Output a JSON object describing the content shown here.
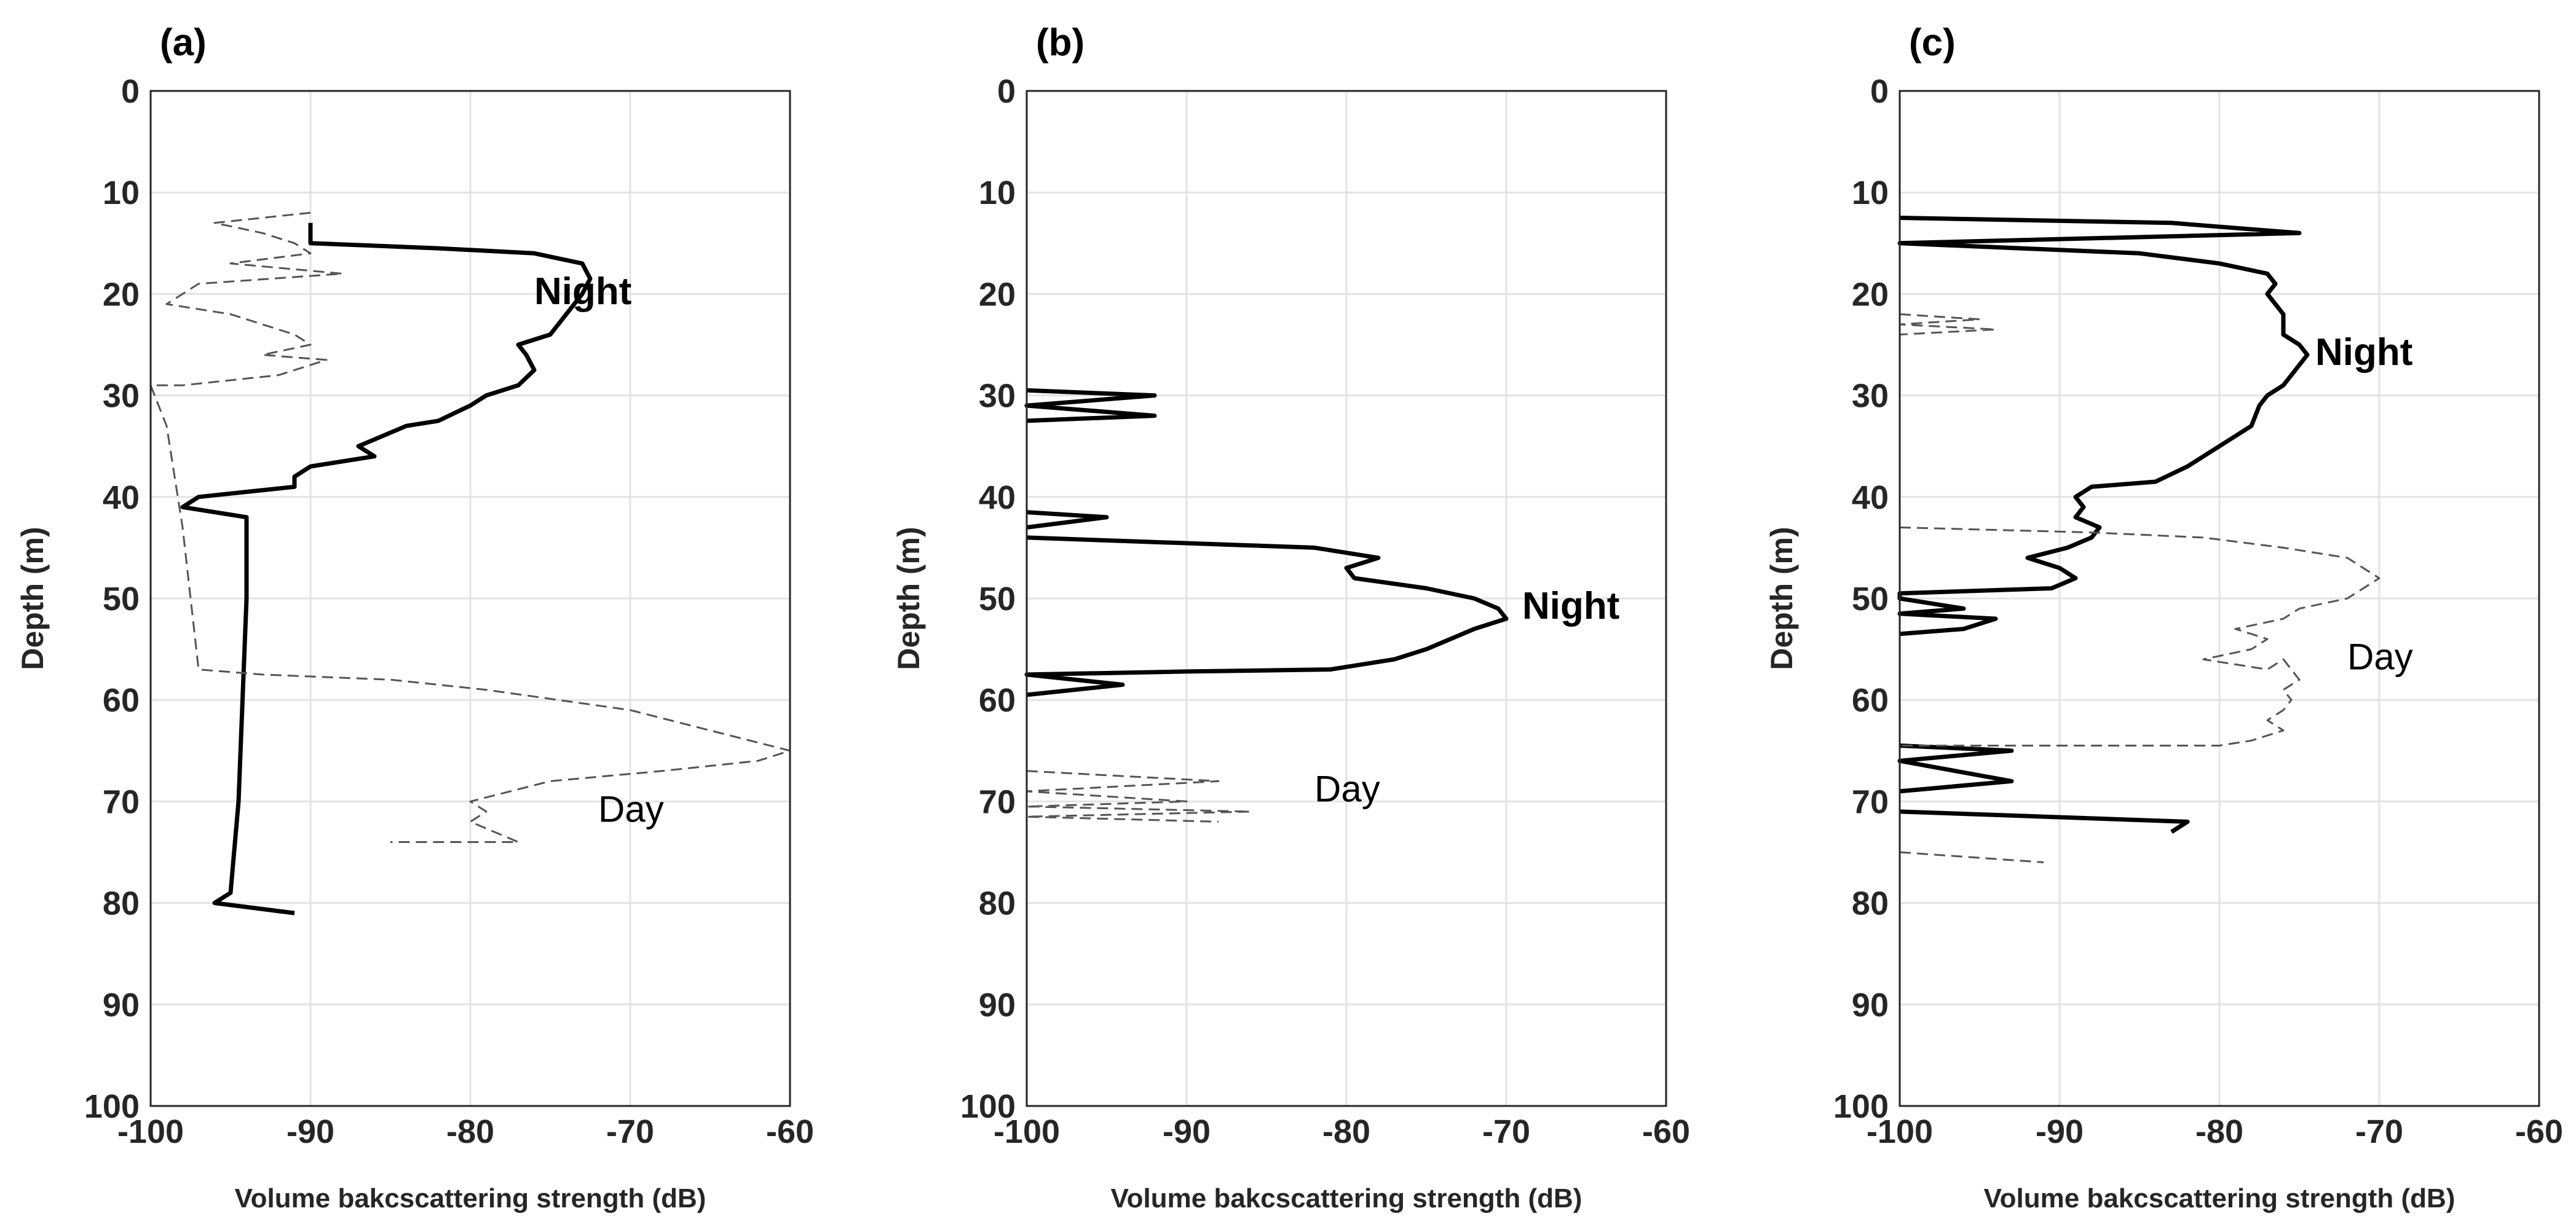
{
  "chart_data": [
    {
      "type": "line",
      "panel_label": "(a)",
      "xlabel": "Volume bakcscattering strength (dB)",
      "ylabel": "Depth (m)",
      "xlim": [
        -100,
        -60
      ],
      "ylim": [
        0,
        100
      ],
      "y_reversed": true,
      "grid": true,
      "x_ticks": [
        "-100",
        "-90",
        "-80",
        "-70",
        "-60"
      ],
      "y_ticks": [
        "0",
        "10",
        "20",
        "30",
        "40",
        "50",
        "60",
        "70",
        "80",
        "90",
        "100"
      ],
      "series": [
        {
          "name": "Night",
          "style": "solid-bold",
          "label_at": [
            -76,
            21
          ],
          "points": [
            [
              -90,
              13
            ],
            [
              -90,
              15
            ],
            [
              -82,
              15.5
            ],
            [
              -76,
              16
            ],
            [
              -73,
              17
            ],
            [
              -72.5,
              18.5
            ],
            [
              -73,
              20
            ],
            [
              -74,
              22
            ],
            [
              -75,
              24
            ],
            [
              -77,
              25
            ],
            [
              -76.5,
              26
            ],
            [
              -76,
              27.5
            ],
            [
              -77,
              29
            ],
            [
              -79,
              30
            ],
            [
              -80,
              31
            ],
            [
              -82,
              32.5
            ],
            [
              -84,
              33
            ],
            [
              -87,
              35
            ],
            [
              -86,
              36
            ],
            [
              -90,
              37
            ],
            [
              -91,
              38
            ],
            [
              -91,
              39
            ],
            [
              -94,
              39.5
            ],
            [
              -97,
              40
            ],
            [
              -98,
              41
            ],
            [
              -94,
              42
            ],
            [
              -94,
              50
            ],
            [
              -94.5,
              70
            ],
            [
              -95,
              79
            ],
            [
              -96,
              80
            ],
            [
              -91,
              81
            ]
          ]
        },
        {
          "name": "Day",
          "style": "dashed",
          "label_at": [
            -72,
            72
          ],
          "points": [
            [
              -90,
              12
            ],
            [
              -93,
              12.5
            ],
            [
              -96,
              13
            ],
            [
              -93,
              14
            ],
            [
              -91,
              15
            ],
            [
              -90,
              16
            ],
            [
              -95,
              17
            ],
            [
              -88,
              18
            ],
            [
              -97,
              19
            ],
            [
              -99,
              21
            ],
            [
              -95,
              22
            ],
            [
              -91,
              24
            ],
            [
              -90,
              25
            ],
            [
              -93,
              26
            ],
            [
              -89,
              26.5
            ],
            [
              -92,
              28
            ],
            [
              -98,
              29
            ],
            [
              -100,
              29
            ],
            [
              -99,
              33
            ],
            [
              -98,
              43
            ],
            [
              -97,
              57
            ],
            [
              -93,
              57.5
            ],
            [
              -85,
              58
            ],
            [
              -79,
              59
            ],
            [
              -70,
              61
            ],
            [
              -65,
              63
            ],
            [
              -60,
              65
            ],
            [
              -62,
              66
            ],
            [
              -68,
              67
            ],
            [
              -75,
              68
            ],
            [
              -80,
              70
            ],
            [
              -79,
              71
            ],
            [
              -80,
              72
            ],
            [
              -77,
              74
            ],
            [
              -85,
              74
            ]
          ]
        }
      ]
    },
    {
      "type": "line",
      "panel_label": "(b)",
      "xlabel": "Volume bakcscattering strength (dB)",
      "ylabel": "Depth (m)",
      "xlim": [
        -100,
        -60
      ],
      "ylim": [
        0,
        100
      ],
      "y_reversed": true,
      "grid": true,
      "x_ticks": [
        "-100",
        "-90",
        "-80",
        "-70",
        "-60"
      ],
      "y_ticks": [
        "0",
        "10",
        "20",
        "30",
        "40",
        "50",
        "60",
        "70",
        "80",
        "90",
        "100"
      ],
      "series": [
        {
          "name": "Night",
          "style": "solid-bold",
          "label_at": [
            -69,
            52
          ],
          "points": [
            [
              -100,
              29.5
            ],
            [
              -92,
              30
            ],
            [
              -100,
              31
            ],
            [
              -92,
              32
            ],
            [
              -100,
              32.5
            ],
            [
              null,
              null
            ],
            [
              -100,
              41.5
            ],
            [
              -95,
              42
            ],
            [
              -100,
              43
            ],
            [
              null,
              null
            ],
            [
              -100,
              44
            ],
            [
              -82,
              45
            ],
            [
              -78,
              46
            ],
            [
              -80,
              47
            ],
            [
              -79.5,
              48
            ],
            [
              -75,
              49
            ],
            [
              -72,
              50
            ],
            [
              -70.5,
              51
            ],
            [
              -70,
              52
            ],
            [
              -72,
              53
            ],
            [
              -75,
              55
            ],
            [
              -77,
              56
            ],
            [
              -81,
              57
            ],
            [
              -90,
              57.2
            ],
            [
              -100,
              57.5
            ],
            [
              -94,
              58.5
            ],
            [
              -100,
              59.5
            ]
          ]
        },
        {
          "name": "Day",
          "style": "dashed",
          "label_at": [
            -82,
            70
          ],
          "points": [
            [
              -100,
              67
            ],
            [
              -88,
              68
            ],
            [
              -100,
              69
            ],
            [
              -90,
              70
            ],
            [
              -100,
              70.5
            ],
            [
              -86,
              71
            ],
            [
              -100,
              71.5
            ],
            [
              -88,
              72
            ]
          ]
        }
      ]
    },
    {
      "type": "line",
      "panel_label": "(c)",
      "xlabel": "Volume bakcscattering strength (dB)",
      "ylabel": "Depth (m)",
      "xlim": [
        -100,
        -60
      ],
      "ylim": [
        0,
        100
      ],
      "y_reversed": true,
      "grid": true,
      "x_ticks": [
        "-100",
        "-90",
        "-80",
        "-70",
        "-60"
      ],
      "y_ticks": [
        "0",
        "10",
        "20",
        "30",
        "40",
        "50",
        "60",
        "70",
        "80",
        "90",
        "100"
      ],
      "series": [
        {
          "name": "Night",
          "style": "solid-bold",
          "label_at": [
            -74,
            27
          ],
          "points": [
            [
              -100,
              12.5
            ],
            [
              -83,
              13
            ],
            [
              -75,
              14
            ],
            [
              -100,
              15
            ],
            [
              -85,
              16
            ],
            [
              -80,
              17
            ],
            [
              -77,
              18
            ],
            [
              -76.5,
              19
            ],
            [
              -77,
              20
            ],
            [
              -76.5,
              21
            ],
            [
              -76,
              22
            ],
            [
              -76,
              24
            ],
            [
              -75,
              25
            ],
            [
              -74.5,
              26
            ],
            [
              -75,
              27
            ],
            [
              -76,
              29
            ],
            [
              -77,
              30
            ],
            [
              -77.5,
              31
            ],
            [
              -78,
              33
            ],
            [
              -80,
              35
            ],
            [
              -82,
              37
            ],
            [
              -84,
              38.5
            ],
            [
              -88,
              39
            ],
            [
              -89,
              40
            ],
            [
              -88.5,
              41
            ],
            [
              -89,
              42
            ],
            [
              -87.5,
              43
            ],
            [
              -88,
              44
            ],
            [
              -89.5,
              45
            ],
            [
              -92,
              46
            ],
            [
              -90,
              47
            ],
            [
              -89,
              48
            ],
            [
              -90.5,
              49
            ],
            [
              -100,
              49.5
            ],
            [
              -100,
              50
            ],
            [
              -96,
              51
            ],
            [
              -100,
              51.5
            ],
            [
              -94,
              52
            ],
            [
              -96,
              53
            ],
            [
              -100,
              53.5
            ],
            [
              null,
              null
            ],
            [
              -100,
              64.5
            ],
            [
              -93,
              65
            ],
            [
              -100,
              66
            ],
            [
              -93,
              68
            ],
            [
              -100,
              69
            ],
            [
              null,
              null
            ],
            [
              -100,
              71
            ],
            [
              -82,
              72
            ],
            [
              -83,
              73
            ]
          ]
        },
        {
          "name": "Day",
          "style": "dashed",
          "label_at": [
            -72,
            57
          ],
          "points": [
            [
              -100,
              22
            ],
            [
              -95,
              22.5
            ],
            [
              -100,
              23
            ],
            [
              -94,
              23.5
            ],
            [
              -100,
              24
            ],
            [
              null,
              null
            ],
            [
              -100,
              43
            ],
            [
              -88,
              43.5
            ],
            [
              -81,
              44
            ],
            [
              -76,
              45
            ],
            [
              -72,
              46
            ],
            [
              -70,
              48
            ],
            [
              -72,
              50
            ],
            [
              -75,
              51
            ],
            [
              -76,
              52
            ],
            [
              -79,
              53
            ],
            [
              -77,
              54
            ],
            [
              -78,
              55
            ],
            [
              -81,
              56
            ],
            [
              -77,
              57
            ],
            [
              -76,
              56
            ],
            [
              -75,
              58
            ],
            [
              -76,
              59
            ],
            [
              -75.5,
              60
            ],
            [
              -76,
              61
            ],
            [
              -77,
              62
            ],
            [
              -76,
              63
            ],
            [
              -78,
              64
            ],
            [
              -80,
              64.5
            ],
            [
              -100,
              64.5
            ],
            [
              null,
              null
            ],
            [
              -100,
              75
            ],
            [
              -91,
              76
            ]
          ]
        }
      ]
    }
  ]
}
